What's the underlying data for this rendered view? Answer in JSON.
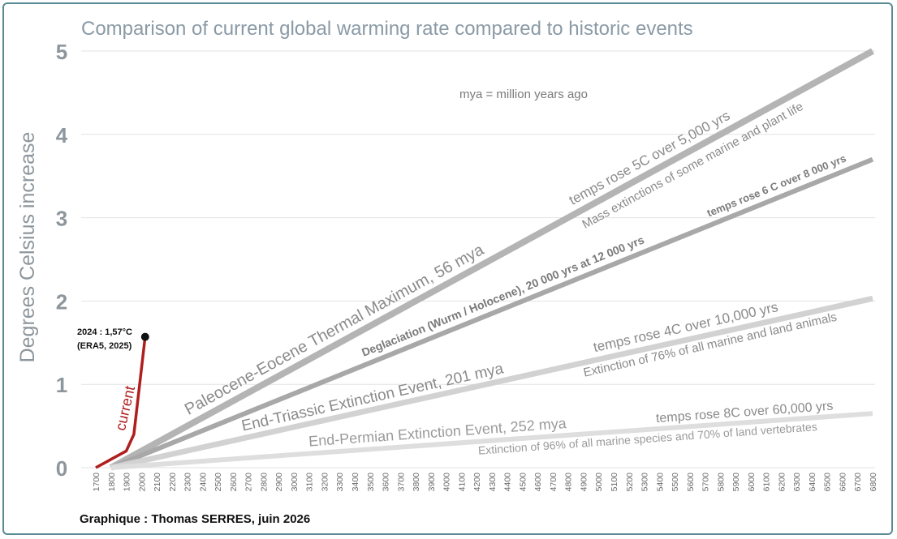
{
  "chart_data": {
    "type": "line",
    "title": "Comparison of current global warming rate compared to historic events",
    "ylabel": "Degrees Celsius increase",
    "xlabel": "",
    "xlim": [
      1700,
      6800
    ],
    "ylim": [
      0,
      5
    ],
    "x_ticks": [
      1700,
      1800,
      1900,
      2000,
      2100,
      2200,
      2300,
      2400,
      2500,
      2600,
      2700,
      2800,
      2900,
      3000,
      3100,
      3200,
      3300,
      3400,
      3500,
      3600,
      3700,
      3800,
      3900,
      4000,
      4100,
      4200,
      4300,
      4400,
      4500,
      4600,
      4700,
      4800,
      4900,
      5000,
      5100,
      5200,
      5300,
      5400,
      5500,
      5600,
      5700,
      5800,
      5900,
      6000,
      6100,
      6200,
      6300,
      6400,
      6500,
      6600,
      6700,
      6800
    ],
    "y_ticks": [
      0,
      1,
      2,
      3,
      4,
      5
    ],
    "grid": true,
    "note": "mya = million years ago",
    "series": [
      {
        "name": "current",
        "color": "#b01e1e",
        "x": [
          1700,
          1800,
          1900,
          1950,
          2024
        ],
        "y": [
          0,
          0.1,
          0.2,
          0.4,
          1.57
        ]
      },
      {
        "name": "Paleocene-Eocene Thermal Maximum, 56 mya",
        "color": "#b4b4b4",
        "x": [
          1800,
          6800
        ],
        "y": [
          0,
          5
        ],
        "annotations": [
          "temps rose 5C over 5,000 yrs",
          "Mass extinctions of some marine and plant life"
        ]
      },
      {
        "name": "Deglaciation (Wurm / Holocene), 20 000 yrs at 12 000 yrs",
        "color": "#a8a8a8",
        "x": [
          1800,
          6800
        ],
        "y": [
          0,
          3.7
        ],
        "annotations": [
          "temps rose 6 C over 8 000 yrs"
        ]
      },
      {
        "name": "End-Triassic Extinction Event, 201 mya",
        "color": "#d2d2d2",
        "x": [
          1800,
          6800
        ],
        "y": [
          0,
          2.03
        ],
        "annotations": [
          "temps rose 4C over 10,000 yrs",
          "Extinction of 76% of all marine and land animals"
        ]
      },
      {
        "name": "End-Permian Extinction Event, 252 mya",
        "color": "#dedede",
        "x": [
          1800,
          6800
        ],
        "y": [
          0,
          0.65
        ],
        "annotations": [
          "temps rose 8C over 60,000 yrs",
          "Extinction of 96% of all marine species and 70% of land vertebrates"
        ]
      }
    ],
    "point_label": {
      "line1": "2024 : 1,57°C",
      "line2": "(ERA5, 2025)",
      "x": 2024,
      "y": 1.57
    }
  },
  "credit": "Graphique : Thomas SERRES, juin 2026"
}
